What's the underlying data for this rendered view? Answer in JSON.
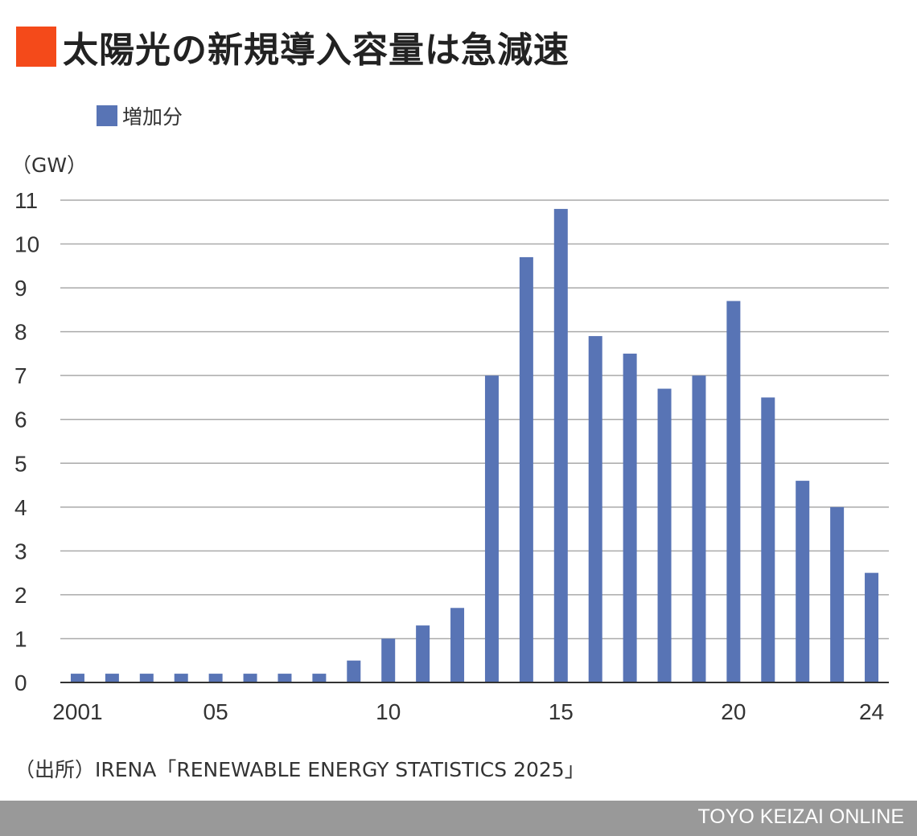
{
  "title": "太陽光の新規導入容量は急減速",
  "colors": {
    "title_mark": "#f44a1a",
    "bar": "#5874b5",
    "grid": "#aaaaaa",
    "axis": "#333333",
    "footer": "#999999"
  },
  "source": "（出所）IRENA「RENEWABLE ENERGY STATISTICS 2025」",
  "footer": "TOYO KEIZAI ONLINE",
  "chart_data": {
    "type": "bar",
    "title": "太陽光の新規導入容量は急減速",
    "ylabel": "（GW）",
    "xlabel": "",
    "legend": "top-left",
    "grid": true,
    "ylim": [
      0,
      11
    ],
    "yticks": [
      0,
      1,
      2,
      3,
      4,
      5,
      6,
      7,
      8,
      9,
      10,
      11
    ],
    "categories": [
      "2001",
      "2002",
      "2003",
      "2004",
      "2005",
      "2006",
      "2007",
      "2008",
      "2009",
      "2010",
      "2011",
      "2012",
      "2013",
      "2014",
      "2015",
      "2016",
      "2017",
      "2018",
      "2019",
      "2020",
      "2021",
      "2022",
      "2023",
      "2024"
    ],
    "xtick_labels": [
      {
        "index": 0,
        "label": "2001"
      },
      {
        "index": 4,
        "label": "05"
      },
      {
        "index": 9,
        "label": "10"
      },
      {
        "index": 14,
        "label": "15"
      },
      {
        "index": 19,
        "label": "20"
      },
      {
        "index": 23,
        "label": "24"
      }
    ],
    "series": [
      {
        "name": "増加分",
        "values": [
          0.2,
          0.2,
          0.2,
          0.2,
          0.2,
          0.2,
          0.2,
          0.2,
          0.5,
          1.0,
          1.3,
          1.7,
          7.0,
          9.7,
          10.8,
          7.9,
          7.5,
          6.7,
          7.0,
          8.7,
          6.5,
          4.6,
          4.0,
          2.5
        ]
      }
    ]
  }
}
